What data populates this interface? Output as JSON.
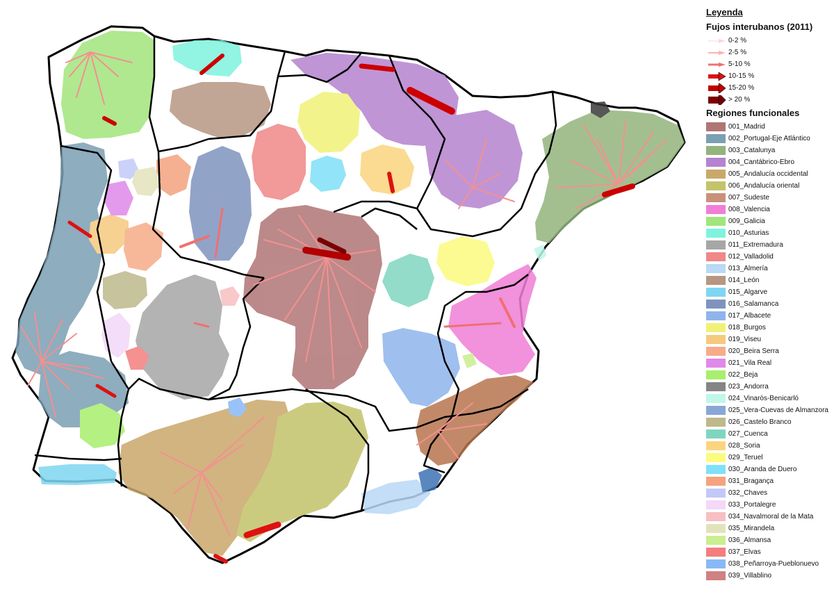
{
  "legend": {
    "title": "Leyenda",
    "flows_title": "Fujos interubanos (2011)",
    "flows": [
      {
        "label": "0-2 %",
        "color": "#ffd6d6"
      },
      {
        "label": "2-5 %",
        "color": "#ffb0b0"
      },
      {
        "label": "5-10 %",
        "color": "#f07070"
      },
      {
        "label": "10-15 %",
        "color": "#dd1111"
      },
      {
        "label": "15-20 %",
        "color": "#c00000"
      },
      {
        "label": "> 20 %",
        "color": "#7a0000"
      }
    ],
    "regions_title": "Regiones funcionales",
    "regions": [
      {
        "label": "001_Madrid",
        "color": "#b07575"
      },
      {
        "label": "002_Portugal-Eje Atlántico",
        "color": "#7b9fb3"
      },
      {
        "label": "003_Catalunya",
        "color": "#93b47d"
      },
      {
        "label": "004_Cantábrico-Ebro",
        "color": "#b583cf"
      },
      {
        "label": "005_Andalucía occidental",
        "color": "#c9a86a"
      },
      {
        "label": "006_Andalucía oriental",
        "color": "#c3c36a"
      },
      {
        "label": "007_Sudeste",
        "color": "#c8927a"
      },
      {
        "label": "008_Valencia",
        "color": "#f07ed6"
      },
      {
        "label": "009_Galicia",
        "color": "#a2e57c"
      },
      {
        "label": "010_Asturias",
        "color": "#7ff3de"
      },
      {
        "label": "011_Extremadura",
        "color": "#a6a6a6"
      },
      {
        "label": "012_Valladolid",
        "color": "#f08888"
      },
      {
        "label": "013_Almería",
        "color": "#b9d9f5"
      },
      {
        "label": "014_León",
        "color": "#b79783"
      },
      {
        "label": "015_Algarve",
        "color": "#7fd6f2"
      },
      {
        "label": "016_Salamanca",
        "color": "#7f93bf"
      },
      {
        "label": "017_Albacete",
        "color": "#8fb4ec"
      },
      {
        "label": "018_Burgos",
        "color": "#f1f178"
      },
      {
        "label": "019_Viseu",
        "color": "#f5c97e"
      },
      {
        "label": "020_Beira Serra",
        "color": "#f6ac89"
      },
      {
        "label": "021_Vila Real",
        "color": "#e089e9"
      },
      {
        "label": "022_Beja",
        "color": "#a9ee6d"
      },
      {
        "label": "023_Andorra",
        "color": "#858585"
      },
      {
        "label": "024_Vinaròs-Benicarló",
        "color": "#bff7e8"
      },
      {
        "label": "025_Vera-Cuevas de Almanzora",
        "color": "#88a7d7"
      },
      {
        "label": "026_Castelo Branco",
        "color": "#bdb98c"
      },
      {
        "label": "027_Cuenca",
        "color": "#7fd6c0"
      },
      {
        "label": "028_Soria",
        "color": "#fbd57e"
      },
      {
        "label": "029_Teruel",
        "color": "#fbfb7e"
      },
      {
        "label": "030_Aranda de Duero",
        "color": "#7fe0f9"
      },
      {
        "label": "031_Bragança",
        "color": "#f4a37e"
      },
      {
        "label": "032_Chaves",
        "color": "#c3c9f7"
      },
      {
        "label": "033_Portalegre",
        "color": "#f3d8f7"
      },
      {
        "label": "034_Navalmoral de la Mata",
        "color": "#f7bfc2"
      },
      {
        "label": "035_Mirandela",
        "color": "#e3e3bb"
      },
      {
        "label": "036_Almansa",
        "color": "#cbee90"
      },
      {
        "label": "037_Elvas",
        "color": "#f47e7e"
      },
      {
        "label": "038_Peñarroya-Pueblonuevo",
        "color": "#88b9f7"
      },
      {
        "label": "039_Villablino",
        "color": "#d08181"
      }
    ]
  }
}
